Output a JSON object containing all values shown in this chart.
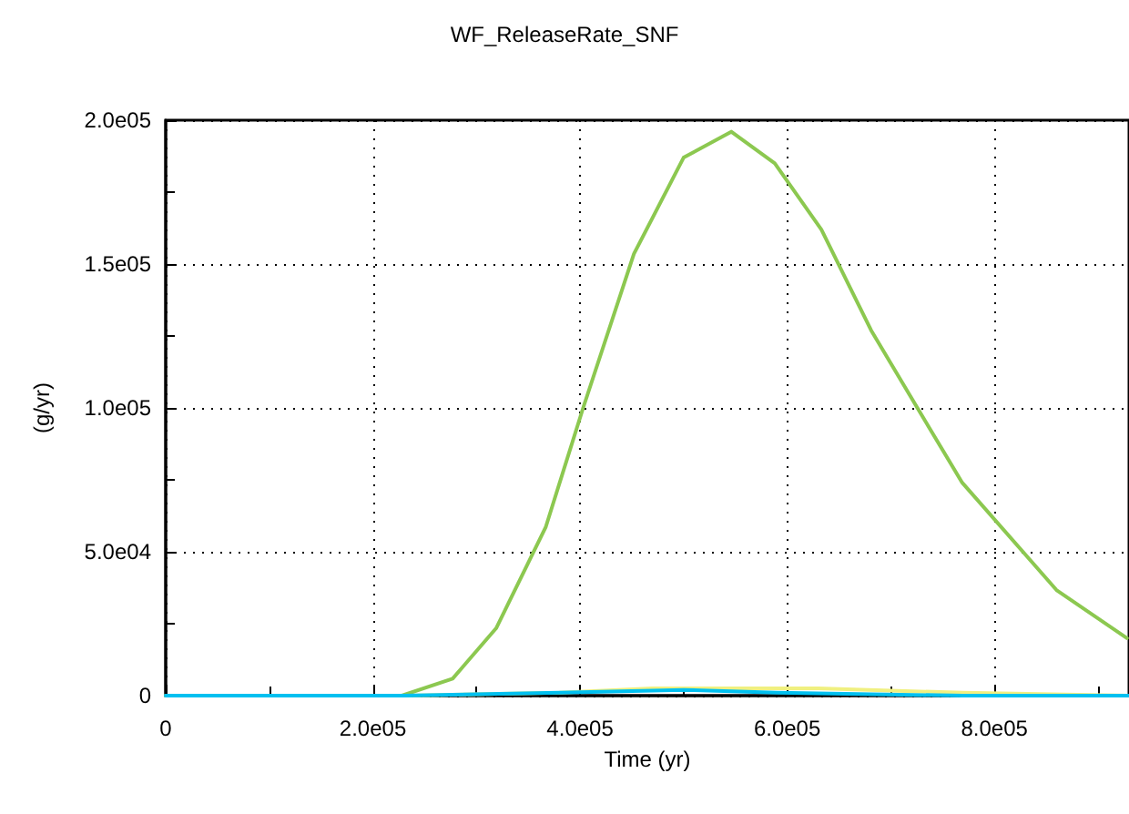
{
  "chart_data": {
    "type": "line",
    "title": "WF_ReleaseRate_SNF",
    "xlabel": "Time (yr)",
    "ylabel": "(g/yr)",
    "xlim": [
      0,
      930000
    ],
    "ylim": [
      0,
      200000
    ],
    "xticks": [
      0,
      {
        "value": 100000,
        "label": null
      },
      {
        "value": 200000,
        "label": "2.0e05"
      },
      {
        "value": 300000,
        "label": null
      },
      {
        "value": 400000,
        "label": "4.0e05"
      },
      {
        "value": 500000,
        "label": null
      },
      {
        "value": 600000,
        "label": "6.0e05"
      },
      {
        "value": 700000,
        "label": null
      },
      {
        "value": 800000,
        "label": "8.0e05"
      },
      {
        "value": 900000,
        "label": null
      }
    ],
    "yticks": [
      0,
      {
        "value": 25000,
        "label": null
      },
      {
        "value": 50000,
        "label": "5.0e04"
      },
      {
        "value": 75000,
        "label": null
      },
      {
        "value": 100000,
        "label": "1.0e05"
      },
      {
        "value": 125000,
        "label": null
      },
      {
        "value": 150000,
        "label": "1.5e05"
      },
      {
        "value": 175000,
        "label": null
      },
      {
        "value": 200000,
        "label": "2.0e05"
      }
    ],
    "grid": true,
    "marker": "none",
    "line_style": "solid",
    "series": [
      {
        "color": "#f0f080",
        "x": [
          0,
          230000,
          380000,
          470000,
          630000,
          770000,
          930000
        ],
        "values": [
          0,
          0,
          1000,
          2500,
          2500,
          1000,
          0
        ]
      },
      {
        "color": "#8cc850",
        "x": [
          0,
          228000,
          277000,
          319000,
          367000,
          403000,
          452000,
          500000,
          546000,
          588000,
          633000,
          681000,
          724000,
          769000,
          860000,
          928000
        ],
        "values": [
          0,
          0,
          5900,
          23400,
          58700,
          100000,
          153500,
          187000,
          196000,
          185000,
          162000,
          127000,
          101000,
          74000,
          36700,
          20000
        ]
      },
      {
        "color": "#00c0f0",
        "x": [
          0,
          230000,
          380000,
          500000,
          590000,
          770000,
          930000
        ],
        "values": [
          0,
          0,
          1000,
          2000,
          1000,
          0,
          0
        ]
      }
    ]
  }
}
